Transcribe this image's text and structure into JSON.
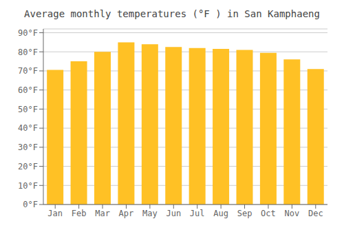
{
  "chart_data": {
    "type": "bar",
    "title": "Average monthly temperatures (°F ) in San Kamphaeng",
    "categories": [
      "Jan",
      "Feb",
      "Mar",
      "Apr",
      "May",
      "Jun",
      "Jul",
      "Aug",
      "Sep",
      "Oct",
      "Nov",
      "Dec"
    ],
    "values": [
      70.5,
      75,
      80,
      85,
      84,
      82.5,
      82,
      81.5,
      81,
      79.5,
      76,
      71
    ],
    "color": "#FFC125",
    "ylim": [
      0,
      92
    ],
    "yticks": [
      {
        "value": 0,
        "label": "0°F"
      },
      {
        "value": 10,
        "label": "10°F"
      },
      {
        "value": 20,
        "label": "20°F"
      },
      {
        "value": 30,
        "label": "30°F"
      },
      {
        "value": 40,
        "label": "40°F"
      },
      {
        "value": 50,
        "label": "50°F"
      },
      {
        "value": 60,
        "label": "60°F"
      },
      {
        "value": 70,
        "label": "70°F"
      },
      {
        "value": 80,
        "label": "80°F"
      },
      {
        "value": 90,
        "label": "90°F"
      }
    ],
    "grid": true
  }
}
